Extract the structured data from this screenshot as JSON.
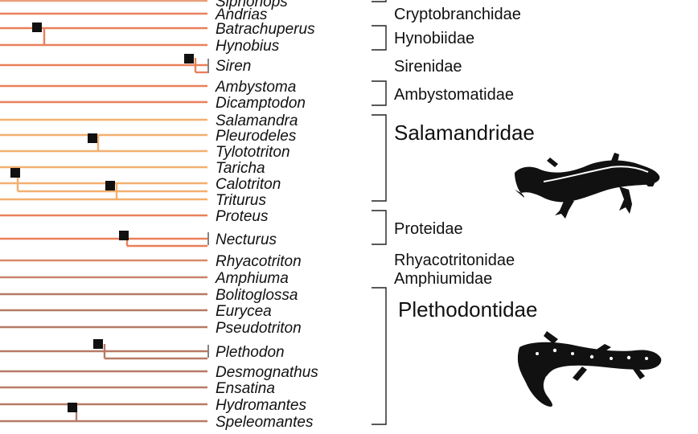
{
  "taxa": [
    {
      "name": "Siphonops",
      "color": "#e9a07a"
    },
    {
      "name": "Andrias",
      "color": "#e9805a"
    },
    {
      "name": "Batrachuperus",
      "color": "#e9805a"
    },
    {
      "name": "Hynobius",
      "color": "#e9805a"
    },
    {
      "name": "Siren",
      "color": "#e9805a"
    },
    {
      "name": "Ambystoma",
      "color": "#e9805a"
    },
    {
      "name": "Dicamptodon",
      "color": "#e9805a"
    },
    {
      "name": "Salamandra",
      "color": "#f3b070"
    },
    {
      "name": "Pleurodeles",
      "color": "#f3b070"
    },
    {
      "name": "Tylototriton",
      "color": "#f3b070"
    },
    {
      "name": "Taricha",
      "color": "#f3b070"
    },
    {
      "name": "Calotriton",
      "color": "#f3b070"
    },
    {
      "name": "Triturus",
      "color": "#f3b070"
    },
    {
      "name": "Proteus",
      "color": "#e9805a"
    },
    {
      "name": "Necturus",
      "color": "#e9805a"
    },
    {
      "name": "Rhyacotriton",
      "color": "#d98a6a"
    },
    {
      "name": "Amphiuma",
      "color": "#c8846a"
    },
    {
      "name": "Bolitoglossa",
      "color": "#b77a66"
    },
    {
      "name": "Eurycea",
      "color": "#b77a66"
    },
    {
      "name": "Pseudotriton",
      "color": "#b77a66"
    },
    {
      "name": "Plethodon",
      "color": "#b77a66"
    },
    {
      "name": "Desmognathus",
      "color": "#b77a66"
    },
    {
      "name": "Ensatina",
      "color": "#b77a66"
    },
    {
      "name": "Hydromantes",
      "color": "#b77a66"
    },
    {
      "name": "Speleomantes",
      "color": "#b77a66"
    }
  ],
  "families": [
    {
      "name": "Cryptobranchidae",
      "size": "normal"
    },
    {
      "name": "Hynobiidae",
      "size": "normal"
    },
    {
      "name": "Sirenidae",
      "size": "normal"
    },
    {
      "name": "Ambystomatidae",
      "size": "normal"
    },
    {
      "name": "Salamandridae",
      "size": "big"
    },
    {
      "name": "Proteidae",
      "size": "normal"
    },
    {
      "name": "Rhyacotritonidae",
      "size": "normal"
    },
    {
      "name": "Amphiumidae",
      "size": "normal"
    },
    {
      "name": "Plethodontidae",
      "size": "big"
    }
  ],
  "icons": [
    "newt-silhouette-icon",
    "salamander-silhouette-icon"
  ]
}
